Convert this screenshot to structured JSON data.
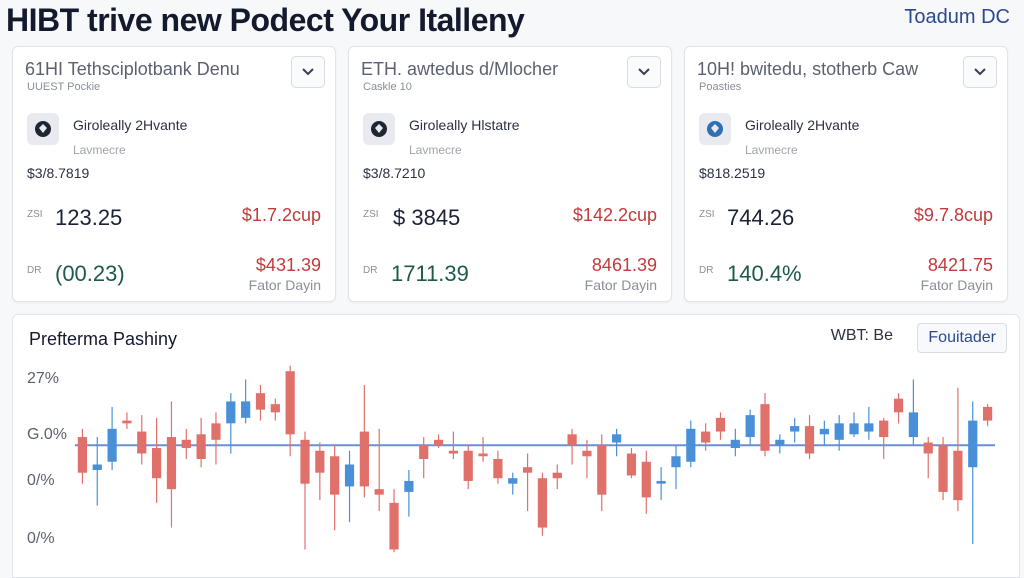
{
  "header": {
    "title": "HIBT trive new Podect Your Italleny",
    "brand": "Toadum DC"
  },
  "cards": [
    {
      "title": "61HI Tethsciplotbank Denu",
      "subtitle": "UUEST Pockie",
      "asset_name": "Giroleally 2Hvante",
      "asset_type": "Lavmecre",
      "asset_range": "$3/8.7819",
      "row1_label": "ZSI",
      "row1_value": "123.25",
      "row1_change": "$1.7.2cup",
      "row2_label": "DR",
      "row2_value": "(00.23)",
      "row2_change": "$431.39",
      "footer": "Fator Dayin"
    },
    {
      "title": "ETH. awtedus d/Mlocher",
      "subtitle": "Caskle 10",
      "asset_name": "Giroleally Hlstatre",
      "asset_type": "Lavmecre",
      "asset_range": "$3/8.7210",
      "row1_label": "ZSI",
      "row1_value": "$ 3845",
      "row1_change": "$142.2cup",
      "row2_label": "DR",
      "row2_value": "1711.39",
      "row2_change": "8461.39",
      "footer": "Fator Dayin"
    },
    {
      "title": "10H! bwitedu, stotherb Caw",
      "subtitle": "Poasties",
      "asset_name": "Giroleally 2Hvante",
      "asset_type": "Lavmecre",
      "asset_range": "$818.2519",
      "row1_label": "ZSI",
      "row1_value": "744.26",
      "row1_change": "$9.7.8cup",
      "row2_label": "DR",
      "row2_value": "140.4%",
      "row2_change": "8421.75",
      "footer": "Fator Dayin"
    }
  ],
  "chart_panel": {
    "title": "Prefterma Pashiny",
    "pair": "WBT: Be",
    "button": "Fouitader"
  },
  "colors": {
    "up": "#4a90d9",
    "down": "#e0706a",
    "baseline": "#6b8fd6"
  },
  "chart_data": {
    "type": "candlestick",
    "y_ticks": [
      "27%",
      "G.0%",
      "0/%",
      "0/%"
    ],
    "baseline": 0,
    "ylim": [
      -4,
      3
    ],
    "candles": [
      {
        "o": 0.3,
        "c": -1.0,
        "h": 0.6,
        "l": -1.4
      },
      {
        "o": -0.9,
        "c": -0.7,
        "h": 0.3,
        "l": -2.2
      },
      {
        "o": -0.6,
        "c": 0.6,
        "h": 1.4,
        "l": -0.9
      },
      {
        "o": 0.9,
        "c": 0.8,
        "h": 1.2,
        "l": 0.6
      },
      {
        "o": 0.5,
        "c": -0.3,
        "h": 1.1,
        "l": -0.7
      },
      {
        "o": -0.1,
        "c": -1.2,
        "h": 1.0,
        "l": -2.1
      },
      {
        "o": 0.3,
        "c": -1.6,
        "h": 1.6,
        "l": -3.0
      },
      {
        "o": 0.2,
        "c": -0.1,
        "h": 0.6,
        "l": -0.5
      },
      {
        "o": 0.4,
        "c": -0.5,
        "h": 1.0,
        "l": -0.8
      },
      {
        "o": 0.8,
        "c": 0.2,
        "h": 1.2,
        "l": -0.7
      },
      {
        "o": 0.8,
        "c": 1.6,
        "h": 1.9,
        "l": -0.3
      },
      {
        "o": 1.0,
        "c": 1.6,
        "h": 2.4,
        "l": 0.8
      },
      {
        "o": 1.9,
        "c": 1.3,
        "h": 2.2,
        "l": 0.9
      },
      {
        "o": 1.5,
        "c": 1.2,
        "h": 1.7,
        "l": 0.9
      },
      {
        "o": 2.7,
        "c": 0.4,
        "h": 2.9,
        "l": -0.4
      },
      {
        "o": 0.2,
        "c": -1.4,
        "h": 0.5,
        "l": -3.8
      },
      {
        "o": -0.2,
        "c": -1.0,
        "h": 0.1,
        "l": -2.0
      },
      {
        "o": -0.4,
        "c": -1.8,
        "h": 0.0,
        "l": -3.1
      },
      {
        "o": -1.5,
        "c": -0.7,
        "h": -0.2,
        "l": -2.8
      },
      {
        "o": 0.5,
        "c": -1.5,
        "h": 2.2,
        "l": -1.9
      },
      {
        "o": -1.6,
        "c": -1.8,
        "h": 0.6,
        "l": -2.4
      },
      {
        "o": -2.1,
        "c": -3.8,
        "h": -1.6,
        "l": -3.9
      },
      {
        "o": -1.7,
        "c": -1.3,
        "h": -0.9,
        "l": -2.6
      },
      {
        "o": 0.0,
        "c": -0.5,
        "h": 0.3,
        "l": -1.2
      },
      {
        "o": 0.2,
        "c": 0.0,
        "h": 0.4,
        "l": -0.1
      },
      {
        "o": -0.2,
        "c": -0.3,
        "h": 0.5,
        "l": -0.5
      },
      {
        "o": -0.2,
        "c": -1.3,
        "h": 0.0,
        "l": -1.6
      },
      {
        "o": -0.3,
        "c": -0.4,
        "h": 0.3,
        "l": -0.6
      },
      {
        "o": -0.5,
        "c": -1.2,
        "h": -0.2,
        "l": -1.4
      },
      {
        "o": -1.4,
        "c": -1.2,
        "h": -1.0,
        "l": -1.8
      },
      {
        "o": -0.8,
        "c": -1.0,
        "h": -0.3,
        "l": -2.4
      },
      {
        "o": -1.2,
        "c": -3.0,
        "h": -1.0,
        "l": -3.3
      },
      {
        "o": -1.0,
        "c": -1.2,
        "h": -0.7,
        "l": -1.6
      },
      {
        "o": 0.4,
        "c": 0.0,
        "h": 0.6,
        "l": -0.7
      },
      {
        "o": -0.2,
        "c": -0.4,
        "h": 0.2,
        "l": -1.2
      },
      {
        "o": 0.0,
        "c": -1.8,
        "h": 0.4,
        "l": -2.4
      },
      {
        "o": 0.1,
        "c": 0.4,
        "h": 0.6,
        "l": -0.4
      },
      {
        "o": -0.3,
        "c": -1.1,
        "h": -0.1,
        "l": -1.2
      },
      {
        "o": -0.6,
        "c": -1.9,
        "h": -0.2,
        "l": -2.5
      },
      {
        "o": -1.4,
        "c": -1.3,
        "h": -0.8,
        "l": -2.0
      },
      {
        "o": -0.8,
        "c": -0.4,
        "h": 0.0,
        "l": -1.6
      },
      {
        "o": -0.6,
        "c": 0.6,
        "h": 0.9,
        "l": -0.8
      },
      {
        "o": 0.5,
        "c": 0.1,
        "h": 0.8,
        "l": -0.2
      },
      {
        "o": 1.0,
        "c": 0.5,
        "h": 1.2,
        "l": 0.2
      },
      {
        "o": -0.1,
        "c": 0.2,
        "h": 0.6,
        "l": -0.4
      },
      {
        "o": 0.3,
        "c": 1.1,
        "h": 1.3,
        "l": 0.0
      },
      {
        "o": 1.5,
        "c": -0.2,
        "h": 1.9,
        "l": -0.4
      },
      {
        "o": 0.0,
        "c": 0.2,
        "h": 0.4,
        "l": -0.3
      },
      {
        "o": 0.5,
        "c": 0.7,
        "h": 1.0,
        "l": 0.1
      },
      {
        "o": 0.7,
        "c": -0.3,
        "h": 1.1,
        "l": -0.5
      },
      {
        "o": 0.4,
        "c": 0.6,
        "h": 0.9,
        "l": 0.0
      },
      {
        "o": 0.2,
        "c": 0.8,
        "h": 1.1,
        "l": -0.2
      },
      {
        "o": 0.4,
        "c": 0.8,
        "h": 1.2,
        "l": 0.3
      },
      {
        "o": 0.5,
        "c": 0.8,
        "h": 1.4,
        "l": 0.2
      },
      {
        "o": 0.9,
        "c": 0.3,
        "h": 1.0,
        "l": -0.5
      },
      {
        "o": 1.7,
        "c": 1.2,
        "h": 1.9,
        "l": 0.8
      },
      {
        "o": 0.3,
        "c": 1.2,
        "h": 2.4,
        "l": 0.0
      },
      {
        "o": 0.1,
        "c": -0.3,
        "h": 0.3,
        "l": -1.2
      },
      {
        "o": 0.0,
        "c": -1.7,
        "h": 0.3,
        "l": -2.0
      },
      {
        "o": -0.2,
        "c": -2.0,
        "h": 2.1,
        "l": -2.4
      },
      {
        "o": -0.8,
        "c": 0.9,
        "h": 1.6,
        "l": -3.6
      },
      {
        "o": 1.4,
        "c": 0.9,
        "h": 1.5,
        "l": 0.7
      }
    ]
  }
}
